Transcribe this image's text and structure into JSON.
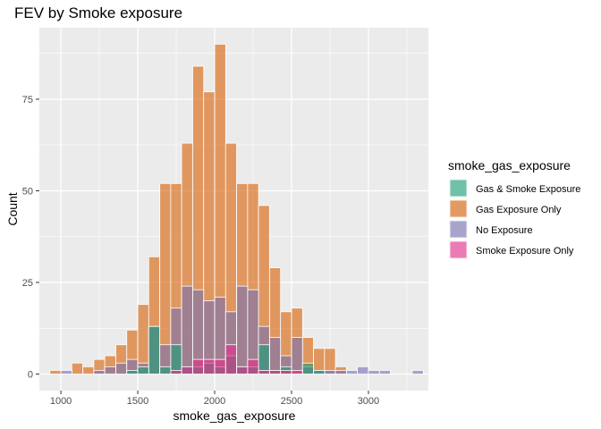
{
  "chart_data": {
    "type": "bar",
    "stacking": "overlay",
    "title": "FEV by Smoke exposure",
    "xlabel": "smoke_gas_exposure",
    "ylabel": "Count",
    "xlim": [
      860,
      3390
    ],
    "ylim": [
      -4.5,
      94.5
    ],
    "x_ticks": [
      1000,
      1500,
      2000,
      2500,
      3000
    ],
    "y_ticks": [
      0,
      25,
      50,
      75
    ],
    "bin_width": 71.4,
    "grid": true,
    "legend_title": "smoke_gas_exposure",
    "legend_position": "right",
    "series": [
      {
        "name": "Gas Exposure Only",
        "color": "#d95f02",
        "x": [
          964,
          1036,
          1107,
          1179,
          1250,
          1321,
          1393,
          1464,
          1536,
          1607,
          1679,
          1750,
          1821,
          1893,
          1964,
          2036,
          2107,
          2179,
          2250,
          2321,
          2393,
          2464,
          2536,
          2607,
          2679,
          2750,
          2821,
          2893,
          2964,
          3036,
          3107,
          3179,
          3250,
          3321
        ],
        "values": [
          1,
          0,
          3,
          2,
          4,
          5,
          8,
          12,
          19,
          32,
          52,
          52,
          63,
          84,
          77,
          90,
          63,
          52,
          52,
          46,
          29,
          17,
          18,
          10,
          7,
          7,
          2,
          0,
          0,
          0,
          0,
          0,
          0,
          0
        ]
      },
      {
        "name": "No Exposure",
        "color": "#7570b3",
        "x": [
          964,
          1036,
          1107,
          1179,
          1250,
          1321,
          1393,
          1464,
          1536,
          1607,
          1679,
          1750,
          1821,
          1893,
          1964,
          2036,
          2107,
          2179,
          2250,
          2321,
          2393,
          2464,
          2536,
          2607,
          2679,
          2750,
          2821,
          2893,
          2964,
          3036,
          3107,
          3179,
          3250,
          3321
        ],
        "values": [
          0,
          1,
          0,
          0,
          1,
          2,
          3,
          4,
          3,
          13,
          8,
          18,
          24,
          23,
          20,
          21,
          17,
          24,
          23,
          13,
          10,
          5,
          10,
          2,
          1,
          1,
          1,
          1,
          2,
          1,
          1,
          0,
          0,
          1
        ]
      },
      {
        "name": "Gas & Smoke Exposure",
        "color": "#1b9e77",
        "x": [
          964,
          1036,
          1107,
          1179,
          1250,
          1321,
          1393,
          1464,
          1536,
          1607,
          1679,
          1750,
          1821,
          1893,
          1964,
          2036,
          2107,
          2179,
          2250,
          2321,
          2393,
          2464,
          2536,
          2607,
          2679,
          2750,
          2821,
          2893,
          2964,
          3036,
          3107,
          3179,
          3250,
          3321
        ],
        "values": [
          0,
          0,
          0,
          0,
          0,
          0,
          0,
          1,
          2,
          13,
          2,
          8,
          2,
          2,
          3,
          2,
          5,
          2,
          2,
          8,
          1,
          2,
          0,
          3,
          1,
          0,
          0,
          0,
          0,
          0,
          0,
          0,
          0,
          0
        ]
      },
      {
        "name": "Smoke Exposure Only",
        "color": "#e7298a",
        "x": [
          964,
          1036,
          1107,
          1179,
          1250,
          1321,
          1393,
          1464,
          1536,
          1607,
          1679,
          1750,
          1821,
          1893,
          1964,
          2036,
          2107,
          2179,
          2250,
          2321,
          2393,
          2464,
          2536,
          2607,
          2679,
          2750,
          2821,
          2893,
          2964,
          3036,
          3107,
          3179,
          3250,
          3321
        ],
        "values": [
          0,
          0,
          0,
          0,
          0,
          0,
          0,
          0,
          0,
          0,
          0,
          1,
          2,
          4,
          4,
          4,
          8,
          2,
          4,
          1,
          1,
          1,
          1,
          0,
          0,
          0,
          0,
          0,
          0,
          0,
          0,
          0,
          0,
          0
        ]
      }
    ],
    "legend_order": [
      "Gas & Smoke Exposure",
      "Gas Exposure Only",
      "No Exposure",
      "Smoke Exposure Only"
    ]
  }
}
